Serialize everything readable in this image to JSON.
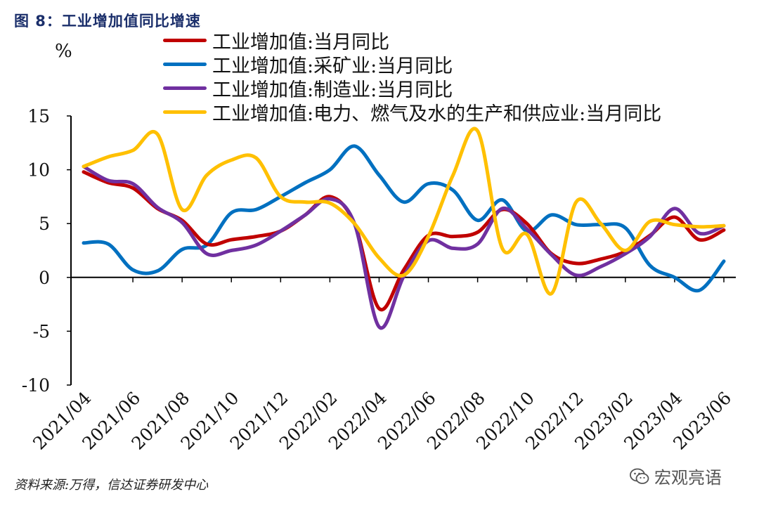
{
  "figure": {
    "title": "图 8：工业增加值同比增速",
    "unit_label": "%",
    "source": "资料来源:万得，信达证券研发中心",
    "watermark": "宏观亮语",
    "watermark_icon": "wechat-icon"
  },
  "chart_data": {
    "type": "line",
    "title": "图 8：工业增加值同比增速",
    "ylabel": "%",
    "ylim": [
      -10,
      15
    ],
    "yticks": [
      -10,
      -5,
      0,
      5,
      10,
      15
    ],
    "grid": false,
    "legend_position": "top",
    "x": [
      "2021/04",
      "2021/05",
      "2021/06",
      "2021/07",
      "2021/08",
      "2021/09",
      "2021/10",
      "2021/11",
      "2021/12",
      "2022/01",
      "2022/02",
      "2022/03",
      "2022/04",
      "2022/05",
      "2022/06",
      "2022/07",
      "2022/08",
      "2022/09",
      "2022/10",
      "2022/11",
      "2022/12",
      "2023/01",
      "2023/02",
      "2023/03",
      "2023/04",
      "2023/05",
      "2023/06"
    ],
    "xtick_labels": [
      "2021/04",
      "2021/06",
      "2021/08",
      "2021/10",
      "2021/12",
      "2022/02",
      "2022/04",
      "2022/06",
      "2022/08",
      "2022/10",
      "2022/12",
      "2023/02",
      "2023/04",
      "2023/06"
    ],
    "series": [
      {
        "name": "工业增加值:当月同比",
        "color": "#c00000",
        "values": [
          9.8,
          8.8,
          8.3,
          6.4,
          5.3,
          3.1,
          3.5,
          3.8,
          4.3,
          5.8,
          7.5,
          5.0,
          -2.9,
          0.7,
          3.9,
          3.8,
          4.2,
          6.3,
          5.0,
          2.2,
          1.3,
          1.7,
          2.4,
          3.9,
          5.6,
          3.5,
          4.4
        ]
      },
      {
        "name": "工业增加值:采矿业:当月同比",
        "color": "#0070c0",
        "values": [
          3.2,
          3.1,
          0.7,
          0.6,
          2.6,
          3.0,
          6.0,
          6.3,
          7.5,
          8.8,
          10.0,
          12.2,
          9.5,
          7.0,
          8.7,
          8.1,
          5.3,
          7.2,
          4.3,
          5.8,
          4.9,
          4.9,
          4.6,
          1.1,
          0.0,
          -1.2,
          1.5
        ]
      },
      {
        "name": "工业增加值:制造业:当月同比",
        "color": "#7030a0",
        "values": [
          10.3,
          9.0,
          8.7,
          6.5,
          5.1,
          2.2,
          2.5,
          3.0,
          4.3,
          5.8,
          7.3,
          5.0,
          -4.6,
          0.1,
          3.4,
          2.7,
          3.1,
          6.4,
          4.5,
          2.1,
          0.2,
          1.0,
          2.2,
          3.8,
          6.4,
          4.1,
          4.8
        ]
      },
      {
        "name": "工业增加值:电力、燃气及水的生产和供应业:当月同比",
        "color": "#ffc000",
        "values": [
          10.3,
          11.2,
          11.8,
          13.3,
          6.3,
          9.5,
          10.9,
          11.1,
          7.5,
          7.0,
          6.9,
          5.0,
          1.8,
          0.2,
          3.8,
          9.5,
          13.6,
          2.7,
          4.0,
          -1.5,
          7.0,
          5.0,
          2.5,
          5.2,
          4.9,
          4.7,
          4.8
        ]
      }
    ]
  }
}
